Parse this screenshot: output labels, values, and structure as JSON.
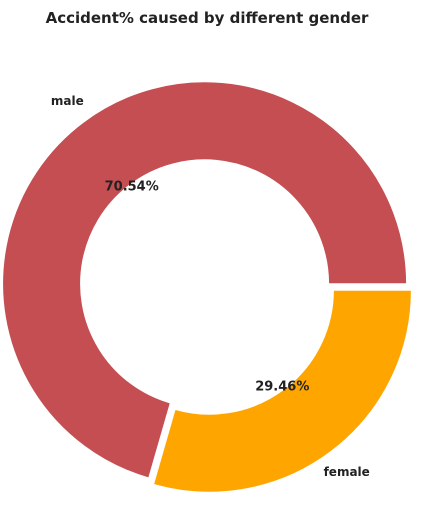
{
  "chart_data": {
    "type": "pie",
    "title": "Accident% caused by different gender",
    "categories": [
      "male",
      "female"
    ],
    "values": [
      70.54,
      29.46
    ],
    "value_labels": [
      "70.54%",
      "29.46%"
    ],
    "colors": [
      "#c44e52",
      "#ffa500"
    ],
    "donut": true,
    "exploded": true,
    "legend": "none"
  }
}
